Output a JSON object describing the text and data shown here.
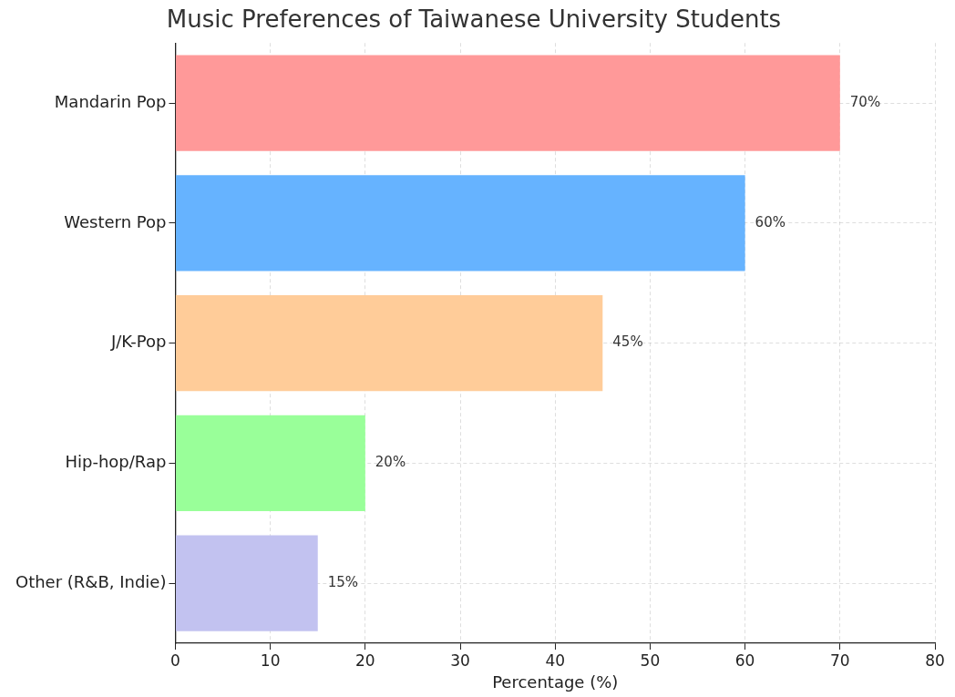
{
  "chart_data": {
    "type": "bar",
    "orientation": "horizontal",
    "title": "Music Preferences of Taiwanese University Students",
    "xlabel": "Percentage (%)",
    "categories": [
      "Mandarin Pop",
      "Western Pop",
      "J/K-Pop",
      "Hip-hop/Rap",
      "Other (R&B, Indie)"
    ],
    "values": [
      70,
      60,
      45,
      20,
      15
    ],
    "colors": [
      "#ff9999",
      "#66b3ff",
      "#ffcc99",
      "#99ff99",
      "#c2c2f0"
    ],
    "value_labels": [
      "70%",
      "60%",
      "45%",
      "20%",
      "15%"
    ],
    "xlim": [
      0,
      80
    ],
    "xticks": [
      0,
      10,
      20,
      30,
      40,
      50,
      60,
      70,
      80
    ],
    "grid": true,
    "legend": false
  }
}
